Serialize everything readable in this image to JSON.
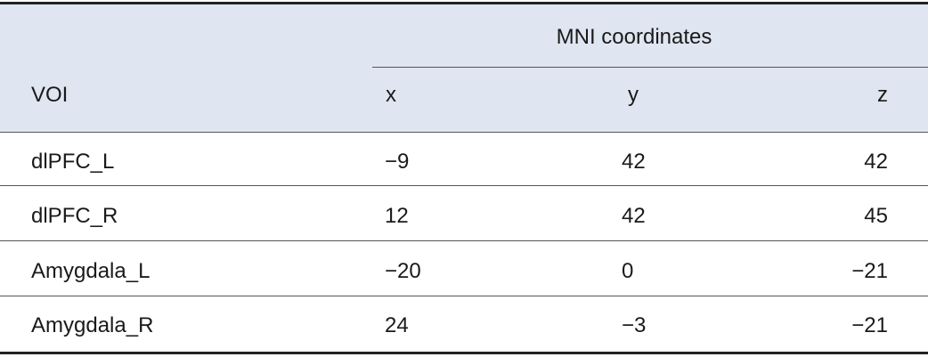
{
  "table": {
    "group_header": "MNI coordinates",
    "columns": [
      "VOI",
      "x",
      "y",
      "z"
    ],
    "rows": [
      [
        "dlPFC_L",
        "−9",
        "42",
        "42"
      ],
      [
        "dlPFC_R",
        "12",
        "42",
        "45"
      ],
      [
        "Amygdala_L",
        "−20",
        "0",
        "−21"
      ],
      [
        "Amygdala_R",
        "24",
        "−3",
        "−21"
      ]
    ]
  }
}
